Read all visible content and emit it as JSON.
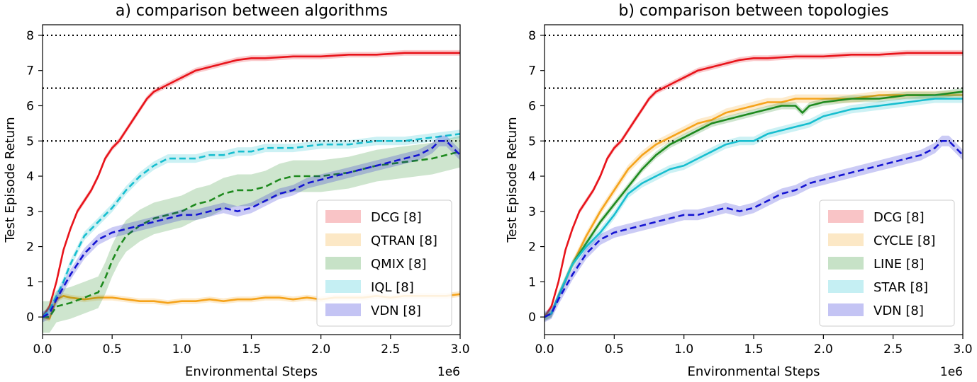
{
  "chart_data": [
    {
      "type": "line",
      "title": "a) comparison between algorithms",
      "xlabel": "Environmental Steps",
      "ylabel": "Test Episode Return",
      "x_offset_label": "1e6",
      "xlim": [
        0,
        3.0
      ],
      "ylim": [
        -0.5,
        8.3
      ],
      "xticks": [
        "0.0",
        "0.5",
        "1.0",
        "1.5",
        "2.0",
        "2.5",
        "3.0"
      ],
      "yticks": [
        "0",
        "1",
        "2",
        "3",
        "4",
        "5",
        "6",
        "7",
        "8"
      ],
      "reference_lines": [
        5,
        6.5,
        8
      ],
      "legend_position": "bottom-right",
      "series": [
        {
          "name": "DCG [8]",
          "color": "#e8141b",
          "dash": "solid",
          "x": [
            0,
            0.05,
            0.1,
            0.15,
            0.2,
            0.25,
            0.3,
            0.35,
            0.4,
            0.45,
            0.5,
            0.55,
            0.6,
            0.65,
            0.7,
            0.75,
            0.8,
            0.85,
            0.9,
            0.95,
            1.0,
            1.1,
            1.2,
            1.3,
            1.4,
            1.5,
            1.6,
            1.8,
            2.0,
            2.2,
            2.4,
            2.6,
            2.8,
            3.0
          ],
          "y": [
            0,
            0.3,
            1.0,
            1.9,
            2.5,
            3.0,
            3.3,
            3.6,
            4.0,
            4.5,
            4.8,
            5.0,
            5.3,
            5.6,
            5.9,
            6.2,
            6.4,
            6.5,
            6.6,
            6.7,
            6.8,
            7.0,
            7.1,
            7.2,
            7.3,
            7.35,
            7.35,
            7.4,
            7.4,
            7.45,
            7.45,
            7.5,
            7.5,
            7.5
          ],
          "band": 0.08
        },
        {
          "name": "QTRAN [8]",
          "color": "#f5a31b",
          "dash": "solid",
          "x": [
            0,
            0.05,
            0.1,
            0.15,
            0.2,
            0.3,
            0.4,
            0.5,
            0.6,
            0.7,
            0.8,
            0.9,
            1.0,
            1.1,
            1.2,
            1.3,
            1.4,
            1.5,
            1.6,
            1.7,
            1.8,
            1.9,
            2.0,
            2.1,
            2.2,
            2.3,
            2.4,
            2.5,
            2.6,
            2.7,
            2.8,
            2.9,
            3.0
          ],
          "y": [
            0,
            -0.05,
            0.5,
            0.6,
            0.55,
            0.5,
            0.55,
            0.55,
            0.5,
            0.45,
            0.45,
            0.4,
            0.45,
            0.45,
            0.5,
            0.45,
            0.5,
            0.5,
            0.55,
            0.55,
            0.5,
            0.55,
            0.5,
            0.55,
            0.55,
            0.55,
            0.6,
            0.55,
            0.6,
            0.6,
            0.6,
            0.6,
            0.65
          ],
          "band": 0.08
        },
        {
          "name": "QMIX [8]",
          "color": "#1e8a1e",
          "dash": "dashed",
          "x": [
            0,
            0.05,
            0.1,
            0.2,
            0.3,
            0.4,
            0.45,
            0.5,
            0.55,
            0.6,
            0.7,
            0.8,
            0.9,
            1.0,
            1.1,
            1.2,
            1.3,
            1.4,
            1.5,
            1.6,
            1.7,
            1.8,
            1.9,
            2.0,
            2.2,
            2.4,
            2.6,
            2.8,
            3.0
          ],
          "y": [
            0,
            0,
            0.3,
            0.4,
            0.55,
            0.7,
            1.1,
            1.6,
            2.0,
            2.3,
            2.6,
            2.8,
            2.9,
            3.0,
            3.2,
            3.3,
            3.5,
            3.6,
            3.6,
            3.7,
            3.9,
            4.0,
            4.0,
            4.0,
            4.1,
            4.3,
            4.4,
            4.5,
            4.7
          ],
          "band": 0.45
        },
        {
          "name": "IQL [8]",
          "color": "#17becf",
          "dash": "dashed",
          "x": [
            0,
            0.05,
            0.1,
            0.15,
            0.2,
            0.3,
            0.4,
            0.5,
            0.6,
            0.7,
            0.8,
            0.9,
            1.0,
            1.1,
            1.2,
            1.3,
            1.4,
            1.5,
            1.6,
            1.8,
            2.0,
            2.2,
            2.4,
            2.6,
            2.8,
            3.0
          ],
          "y": [
            0,
            0.2,
            0.6,
            1.0,
            1.5,
            2.3,
            2.7,
            3.1,
            3.6,
            4.0,
            4.3,
            4.5,
            4.5,
            4.5,
            4.6,
            4.6,
            4.7,
            4.7,
            4.8,
            4.8,
            4.9,
            4.9,
            5.0,
            5.0,
            5.1,
            5.2
          ],
          "band": 0.12
        },
        {
          "name": "VDN [8]",
          "color": "#1414d2",
          "dash": "dashed",
          "x": [
            0,
            0.05,
            0.1,
            0.2,
            0.3,
            0.4,
            0.5,
            0.6,
            0.7,
            0.8,
            0.9,
            1.0,
            1.1,
            1.2,
            1.3,
            1.4,
            1.5,
            1.6,
            1.7,
            1.8,
            1.9,
            2.0,
            2.1,
            2.2,
            2.3,
            2.4,
            2.5,
            2.6,
            2.7,
            2.8,
            2.85,
            2.9,
            2.95,
            3.0
          ],
          "y": [
            0,
            0.1,
            0.5,
            1.2,
            1.8,
            2.2,
            2.4,
            2.5,
            2.6,
            2.7,
            2.8,
            2.9,
            2.9,
            3.0,
            3.1,
            3.0,
            3.1,
            3.3,
            3.5,
            3.6,
            3.8,
            3.9,
            4.0,
            4.1,
            4.2,
            4.3,
            4.4,
            4.5,
            4.6,
            4.8,
            5.0,
            5.0,
            4.8,
            4.6
          ],
          "band": 0.15
        }
      ]
    },
    {
      "type": "line",
      "title": "b) comparison between topologies",
      "xlabel": "Environmental Steps",
      "ylabel": "Test Episode Return",
      "x_offset_label": "1e6",
      "xlim": [
        0,
        3.0
      ],
      "ylim": [
        -0.5,
        8.3
      ],
      "xticks": [
        "0.0",
        "0.5",
        "1.0",
        "1.5",
        "2.0",
        "2.5",
        "3.0"
      ],
      "yticks": [
        "0",
        "1",
        "2",
        "3",
        "4",
        "5",
        "6",
        "7",
        "8"
      ],
      "reference_lines": [
        5,
        6.5,
        8
      ],
      "legend_position": "bottom-right",
      "series": [
        {
          "name": "DCG [8]",
          "color": "#e8141b",
          "dash": "solid",
          "x": [
            0,
            0.05,
            0.1,
            0.15,
            0.2,
            0.25,
            0.3,
            0.35,
            0.4,
            0.45,
            0.5,
            0.55,
            0.6,
            0.65,
            0.7,
            0.75,
            0.8,
            0.85,
            0.9,
            0.95,
            1.0,
            1.1,
            1.2,
            1.3,
            1.4,
            1.5,
            1.6,
            1.8,
            2.0,
            2.2,
            2.4,
            2.6,
            2.8,
            3.0
          ],
          "y": [
            0,
            0.3,
            1.0,
            1.9,
            2.5,
            3.0,
            3.3,
            3.6,
            4.0,
            4.5,
            4.8,
            5.0,
            5.3,
            5.6,
            5.9,
            6.2,
            6.4,
            6.5,
            6.6,
            6.7,
            6.8,
            7.0,
            7.1,
            7.2,
            7.3,
            7.35,
            7.35,
            7.4,
            7.4,
            7.45,
            7.45,
            7.5,
            7.5,
            7.5
          ],
          "band": 0.08
        },
        {
          "name": "CYCLE [8]",
          "color": "#f5a31b",
          "dash": "solid",
          "x": [
            0,
            0.05,
            0.1,
            0.2,
            0.3,
            0.4,
            0.5,
            0.6,
            0.7,
            0.8,
            0.9,
            1.0,
            1.1,
            1.2,
            1.3,
            1.4,
            1.5,
            1.6,
            1.7,
            1.8,
            1.9,
            2.0,
            2.2,
            2.4,
            2.6,
            2.8,
            3.0
          ],
          "y": [
            0,
            0.1,
            0.6,
            1.5,
            2.3,
            3.0,
            3.6,
            4.2,
            4.6,
            4.9,
            5.1,
            5.3,
            5.5,
            5.6,
            5.8,
            5.9,
            6.0,
            6.1,
            6.1,
            6.2,
            6.2,
            6.2,
            6.2,
            6.3,
            6.3,
            6.3,
            6.3
          ],
          "band": 0.12
        },
        {
          "name": "LINE [8]",
          "color": "#1e8a1e",
          "dash": "solid",
          "x": [
            0,
            0.05,
            0.1,
            0.2,
            0.3,
            0.4,
            0.5,
            0.6,
            0.7,
            0.8,
            0.9,
            1.0,
            1.1,
            1.2,
            1.3,
            1.4,
            1.5,
            1.6,
            1.7,
            1.8,
            1.85,
            1.9,
            2.0,
            2.2,
            2.4,
            2.6,
            2.8,
            3.0
          ],
          "y": [
            0,
            0.1,
            0.6,
            1.5,
            2.1,
            2.7,
            3.2,
            3.7,
            4.2,
            4.6,
            4.9,
            5.1,
            5.3,
            5.5,
            5.6,
            5.7,
            5.8,
            5.9,
            6.0,
            6.0,
            5.8,
            6.0,
            6.1,
            6.2,
            6.2,
            6.3,
            6.3,
            6.4
          ],
          "band": 0.1
        },
        {
          "name": "STAR [8]",
          "color": "#17becf",
          "dash": "solid",
          "x": [
            0,
            0.05,
            0.1,
            0.2,
            0.3,
            0.4,
            0.5,
            0.6,
            0.7,
            0.8,
            0.9,
            1.0,
            1.1,
            1.2,
            1.3,
            1.4,
            1.5,
            1.6,
            1.7,
            1.8,
            1.9,
            2.0,
            2.2,
            2.4,
            2.6,
            2.8,
            3.0
          ],
          "y": [
            0,
            0.1,
            0.6,
            1.5,
            2.0,
            2.4,
            2.9,
            3.5,
            3.8,
            4.0,
            4.2,
            4.3,
            4.5,
            4.7,
            4.9,
            5.0,
            5.0,
            5.2,
            5.3,
            5.4,
            5.5,
            5.7,
            5.9,
            6.0,
            6.1,
            6.2,
            6.2
          ],
          "band": 0.12
        },
        {
          "name": "VDN [8]",
          "color": "#1414d2",
          "dash": "dashed",
          "x": [
            0,
            0.05,
            0.1,
            0.2,
            0.3,
            0.4,
            0.5,
            0.6,
            0.7,
            0.8,
            0.9,
            1.0,
            1.1,
            1.2,
            1.3,
            1.4,
            1.5,
            1.6,
            1.7,
            1.8,
            1.9,
            2.0,
            2.1,
            2.2,
            2.3,
            2.4,
            2.5,
            2.6,
            2.7,
            2.8,
            2.85,
            2.9,
            2.95,
            3.0
          ],
          "y": [
            0,
            0.1,
            0.5,
            1.2,
            1.8,
            2.2,
            2.4,
            2.5,
            2.6,
            2.7,
            2.8,
            2.9,
            2.9,
            3.0,
            3.1,
            3.0,
            3.1,
            3.3,
            3.5,
            3.6,
            3.8,
            3.9,
            4.0,
            4.1,
            4.2,
            4.3,
            4.4,
            4.5,
            4.6,
            4.8,
            5.0,
            5.0,
            4.8,
            4.6
          ],
          "band": 0.15
        }
      ]
    }
  ]
}
